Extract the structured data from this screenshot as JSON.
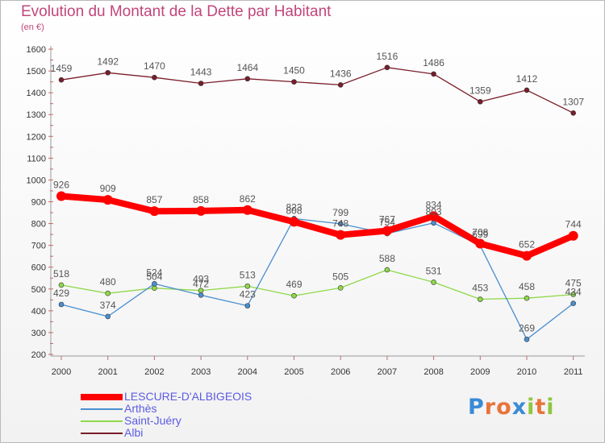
{
  "header": {
    "title": "Evolution du Montant de la Dette par Habitant",
    "subtitle": "(en €)"
  },
  "chart_data": {
    "type": "line",
    "title": "Evolution du Montant de la Dette par Habitant",
    "subtitle": "(en €)",
    "xlabel": "",
    "ylabel": "",
    "categories": [
      "2000",
      "2001",
      "2002",
      "2003",
      "2004",
      "2005",
      "2006",
      "2007",
      "2008",
      "2009",
      "2010",
      "2011"
    ],
    "ylim": [
      200,
      1600
    ],
    "yticks": [
      200,
      300,
      400,
      500,
      600,
      700,
      800,
      900,
      1000,
      1100,
      1200,
      1300,
      1400,
      1500,
      1600
    ],
    "grid": false,
    "legend_position": "bottom-left",
    "series": [
      {
        "name": "LESCURE-D'ALBIGEOIS",
        "color": "#ff0000",
        "values": [
          926,
          909,
          857,
          858,
          862,
          808,
          748,
          767,
          834,
          708,
          652,
          744
        ]
      },
      {
        "name": "Arthès",
        "color": "#4a8fcf",
        "values": [
          429,
          374,
          524,
          472,
          423,
          823,
          799,
          754,
          803,
          699,
          269,
          434
        ]
      },
      {
        "name": "Saint-Juéry",
        "color": "#8fd84a",
        "values": [
          518,
          480,
          504,
          493,
          513,
          469,
          505,
          588,
          531,
          453,
          458,
          475
        ]
      },
      {
        "name": "Albi",
        "color": "#7a1d2a",
        "values": [
          1459,
          1492,
          1470,
          1443,
          1464,
          1450,
          1436,
          1516,
          1486,
          1359,
          1412,
          1307
        ]
      }
    ]
  },
  "logo": {
    "letters": [
      "P",
      "r",
      "o",
      "x",
      "i",
      "t",
      "i"
    ],
    "colors": [
      "#3a8ad6",
      "#e8743a",
      "#e8743a",
      "#3a8ad6",
      "#8fc640",
      "#e8743a",
      "#8fc640"
    ]
  }
}
